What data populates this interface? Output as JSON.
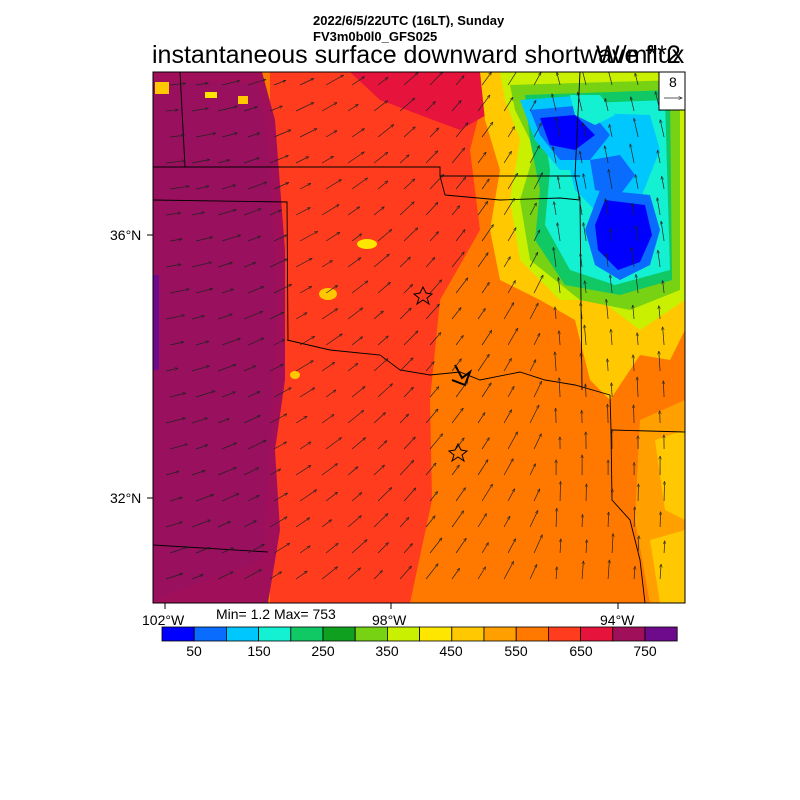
{
  "header": {
    "line1": "2022/6/5/22UTC (16LT), Sunday",
    "line2": "FV3m0b0l0_GFS025",
    "title": "instantaneous surface downward shortwave flux",
    "units": "W/m**2"
  },
  "ref_vector": {
    "value": "8"
  },
  "axes": {
    "lat_labels": [
      "36°N",
      "32°N"
    ],
    "lon_labels": [
      "102°W",
      "98°W",
      "94°W"
    ]
  },
  "stats": {
    "minmax": "Min= 1.2 Max= 753"
  },
  "colorbar": {
    "colors": [
      "#0000ff",
      "#0a6cff",
      "#00c8ff",
      "#14f0d2",
      "#10c864",
      "#10a020",
      "#78d214",
      "#c8f000",
      "#ffe600",
      "#ffc800",
      "#ffa000",
      "#ff7800",
      "#ff3c1e",
      "#e6143c",
      "#a0105a",
      "#6e0a8c"
    ],
    "labels": [
      "50",
      "150",
      "250",
      "350",
      "450",
      "550",
      "650",
      "750"
    ]
  },
  "chart_data": {
    "type": "heatmap",
    "title": "instantaneous surface downward shortwave flux",
    "units": "W/m**2",
    "min": 1.2,
    "max": 753,
    "levels": [
      50,
      100,
      150,
      200,
      250,
      300,
      350,
      400,
      450,
      500,
      550,
      600,
      650,
      700,
      750
    ],
    "lon_ticks": [
      "102°W",
      "98°W",
      "94°W"
    ],
    "lat_ticks": [
      "36°N",
      "32°N"
    ]
  }
}
